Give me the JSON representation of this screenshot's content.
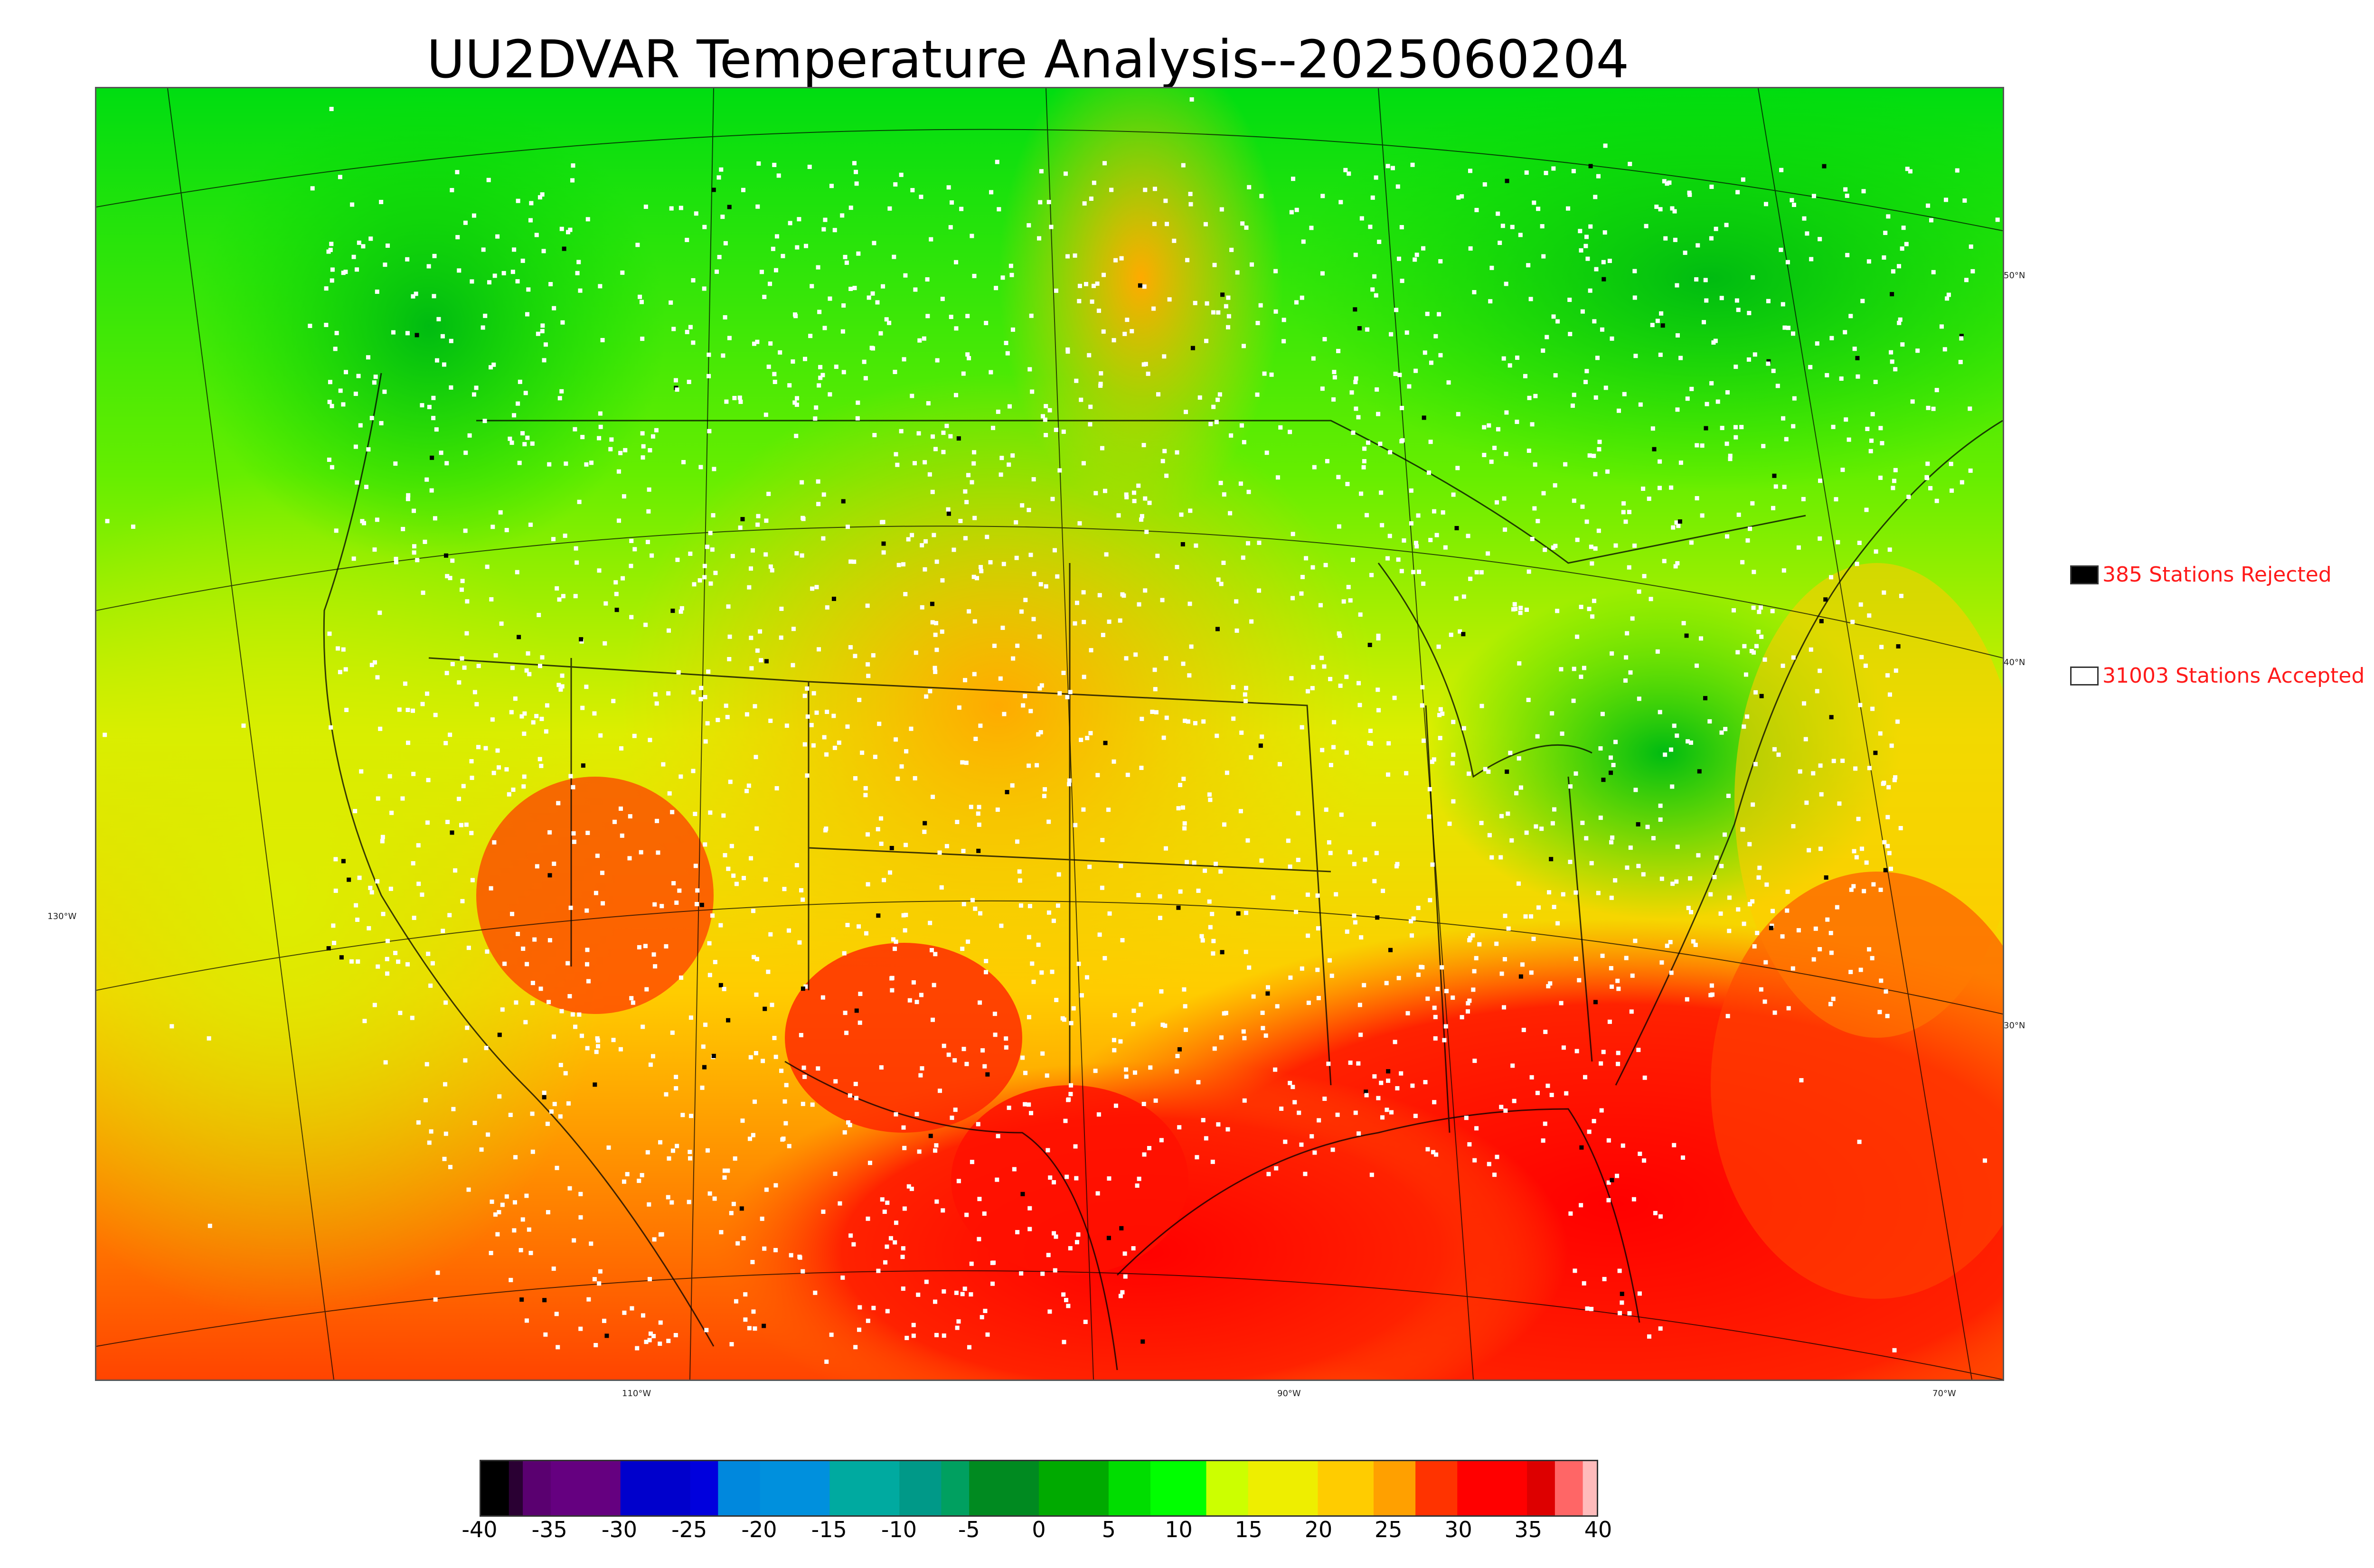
{
  "title": "UU2DVAR Temperature Analysis--2025060204",
  "map": {
    "lon_labels": [
      "110°W",
      "90°W",
      "70°W"
    ],
    "lat_labels_left": [
      "130°W"
    ],
    "lat_labels_right": [
      "50°N",
      "40°N",
      "30°N"
    ]
  },
  "legend": {
    "rejected": {
      "count_label": "385 Stations Rejected",
      "color": "#000000"
    },
    "accepted": {
      "count_label": "31003 Stations Accepted",
      "color": "#ffffff"
    }
  },
  "colorbar": {
    "ticks": [
      "-40",
      "-35",
      "-30",
      "-25",
      "-20",
      "-15",
      "-10",
      "-5",
      "0",
      "5",
      "10",
      "15",
      "20",
      "25",
      "30",
      "35",
      "40"
    ],
    "stops": [
      {
        "v": -40,
        "c": "#000000"
      },
      {
        "v": -38,
        "c": "#2a0033"
      },
      {
        "v": -37,
        "c": "#5a0070"
      },
      {
        "v": -35,
        "c": "#650080"
      },
      {
        "v": -30,
        "c": "#0000cc"
      },
      {
        "v": -25,
        "c": "#0000dd"
      },
      {
        "v": -23,
        "c": "#0088dd"
      },
      {
        "v": -20,
        "c": "#0090dd"
      },
      {
        "v": -15,
        "c": "#00aaa0"
      },
      {
        "v": -10,
        "c": "#009988"
      },
      {
        "v": -7,
        "c": "#00a060"
      },
      {
        "v": -5,
        "c": "#008a20"
      },
      {
        "v": 0,
        "c": "#00aa00"
      },
      {
        "v": 5,
        "c": "#00dd00"
      },
      {
        "v": 8,
        "c": "#00ff00"
      },
      {
        "v": 12,
        "c": "#ccff00"
      },
      {
        "v": 15,
        "c": "#eeee00"
      },
      {
        "v": 20,
        "c": "#ffcc00"
      },
      {
        "v": 24,
        "c": "#ffa000"
      },
      {
        "v": 27,
        "c": "#ff3300"
      },
      {
        "v": 30,
        "c": "#ff0000"
      },
      {
        "v": 35,
        "c": "#dd0000"
      },
      {
        "v": 37,
        "c": "#ff6666"
      },
      {
        "v": 39,
        "c": "#ffbbbb"
      },
      {
        "v": 40,
        "c": "#cccccc"
      }
    ]
  },
  "colors": {
    "cold_north": "#00cc22",
    "mild": "#ccff00",
    "warm": "#ffbb00",
    "hot": "#ff1100",
    "ocean_west": "#ddee00"
  }
}
